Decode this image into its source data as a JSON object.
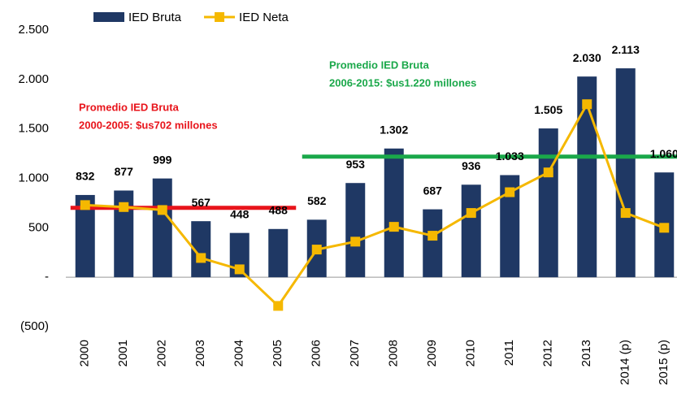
{
  "chart_data": {
    "type": "bar_line",
    "categories": [
      "2000",
      "2001",
      "2002",
      "2003",
      "2004",
      "2005",
      "2006",
      "2007",
      "2008",
      "2009",
      "2010",
      "2011",
      "2012",
      "2013",
      "2014 (p)",
      "2015 (p)"
    ],
    "series": [
      {
        "name": "IED Bruta",
        "type": "bar",
        "color": "#1f3864",
        "values": [
          832,
          877,
          999,
          567,
          448,
          488,
          582,
          953,
          1302,
          687,
          936,
          1033,
          1505,
          2030,
          2113,
          1060
        ],
        "value_labels": [
          "832",
          "877",
          "999",
          "567",
          "448",
          "488",
          "582",
          "953",
          "1.302",
          "687",
          "936",
          "1.033",
          "1.505",
          "2.030",
          "2.113",
          "1.060"
        ]
      },
      {
        "name": "IED Neta",
        "type": "line",
        "color": "#f5b800",
        "values": [
          730,
          710,
          680,
          195,
          80,
          -290,
          280,
          360,
          510,
          420,
          650,
          860,
          1060,
          1750,
          650,
          500
        ]
      }
    ],
    "ylim": [
      -500,
      2500
    ],
    "yticks": [
      {
        "value": -500,
        "label": "(500)"
      },
      {
        "value": 0,
        "label": "-"
      },
      500,
      {
        "value": 1000,
        "label": "1.000"
      },
      {
        "value": 1500,
        "label": "1.500"
      },
      {
        "value": 2000,
        "label": "2.000"
      },
      {
        "value": 2500,
        "label": "2.500"
      }
    ],
    "reference_lines": [
      {
        "lines": [
          "Promedio IED Bruta",
          "2000-2005: $us702 millones"
        ],
        "value": 702,
        "color": "#e8141b",
        "from": "2000",
        "to": "2005"
      },
      {
        "lines": [
          "Promedio IED Bruta",
          "2006-2015:  $us1.220  millones"
        ],
        "value": 1220,
        "color": "#1aa84a",
        "from": "2006",
        "to": "2015 (p)"
      }
    ],
    "legend": "top"
  }
}
